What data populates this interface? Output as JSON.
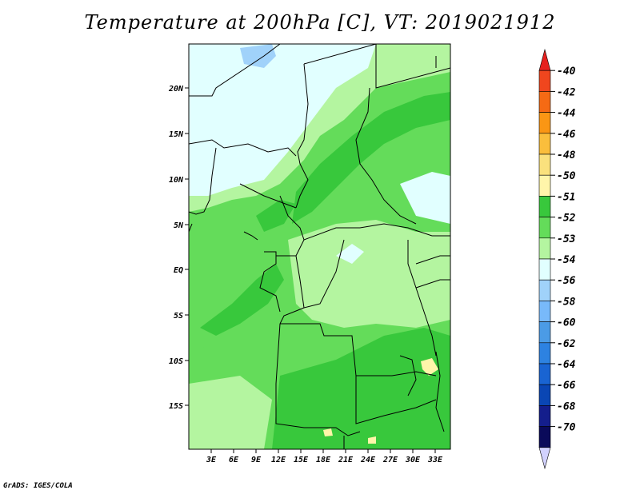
{
  "title": "Temperature at 200hPa [C], VT: 2019021912",
  "credit": "GrADS: IGES/COLA",
  "map": {
    "lat_ticks": [
      "20N",
      "15N",
      "10N",
      "5N",
      "EQ",
      "5S",
      "10S",
      "15S"
    ],
    "lon_ticks": [
      "3E",
      "6E",
      "9E",
      "12E",
      "15E",
      "18E",
      "21E",
      "24E",
      "27E",
      "30E",
      "33E"
    ]
  },
  "colorbar": {
    "labels": [
      "-40",
      "-42",
      "-44",
      "-46",
      "-48",
      "-50",
      "-51",
      "-52",
      "-53",
      "-54",
      "-56",
      "-58",
      "-60",
      "-62",
      "-64",
      "-66",
      "-68",
      "-70"
    ],
    "colors": [
      "#e6201e",
      "#f0461e",
      "#f56a14",
      "#fa9614",
      "#fabe3c",
      "#fae17d",
      "#fff5aa",
      "#38c83c",
      "#64dc5a",
      "#b4f5a0",
      "#e1ffff",
      "#a0d2fa",
      "#78b9fa",
      "#4b9be6",
      "#2d82e1",
      "#1964d2",
      "#0a46b4",
      "#141e8c",
      "#0a0a5a",
      "#d2d2ff"
    ]
  }
}
